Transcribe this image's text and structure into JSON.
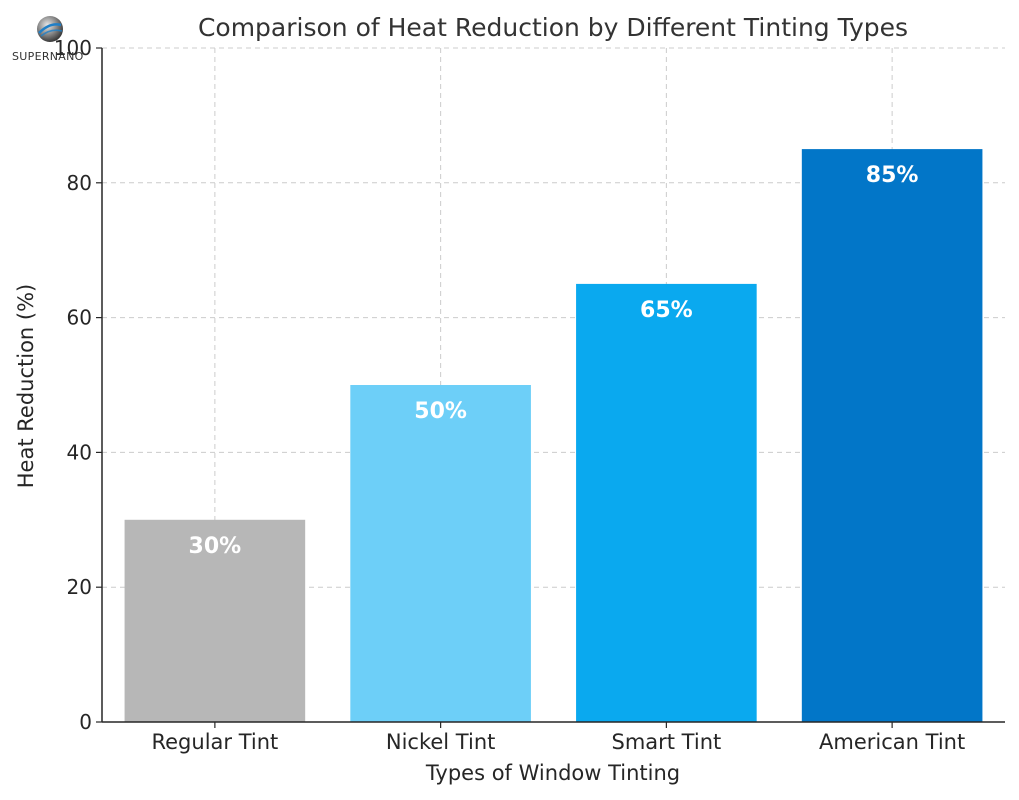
{
  "chart_data": {
    "type": "bar",
    "title": "Comparison of Heat Reduction by Different Tinting Types",
    "xlabel": "Types of Window Tinting",
    "ylabel": "Heat Reduction (%)",
    "categories": [
      "Regular Tint",
      "Nickel Tint",
      "Smart Tint",
      "American Tint"
    ],
    "values": [
      30,
      50,
      65,
      85
    ],
    "value_labels": [
      "30%",
      "50%",
      "65%",
      "85%"
    ],
    "colors": [
      "#b7b7b7",
      "#6dcff8",
      "#0aa9ef",
      "#0276c8"
    ],
    "ylim": [
      0,
      100
    ],
    "yticks": [
      0,
      20,
      40,
      60,
      80,
      100
    ],
    "grid": true
  },
  "logo": {
    "text": "SUPERNANO"
  }
}
